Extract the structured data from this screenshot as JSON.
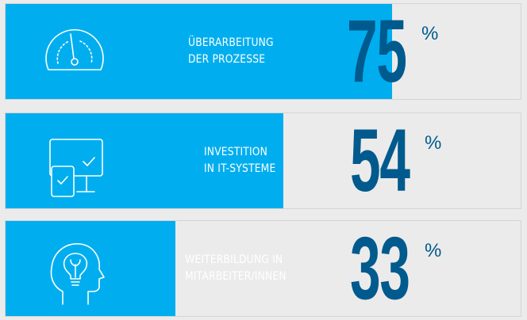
{
  "chart_data": {
    "type": "bar",
    "orientation": "horizontal",
    "categories": [
      "ÜBERARBEITUNG DER PROZESSE",
      "INVESTITION IN IT-SYSTEME",
      "WEITERBILDUNG IN MITARBEITER/INNEN"
    ],
    "values": [
      75,
      54,
      33
    ],
    "unit": "%",
    "xlim": [
      0,
      100
    ]
  },
  "rows": [
    {
      "label_lines": [
        "ÜBERARBEITUNG",
        "DER PROZESSE"
      ],
      "value": "75",
      "unit": "%",
      "percent": 75,
      "icon": "speedometer-icon"
    },
    {
      "label_lines": [
        "INVESTITION",
        "IN IT-SYSTEME"
      ],
      "value": "54",
      "unit": "%",
      "percent": 54,
      "icon": "monitor-tablet-icon"
    },
    {
      "label_lines": [
        "WEITERBILDUNG IN",
        "MITARBEITER/INNEN"
      ],
      "value": "33",
      "unit": "%",
      "percent": 33,
      "icon": "head-lightbulb-icon"
    }
  ],
  "colors": {
    "bar": "#00aeef",
    "background": "#ecebeb",
    "value": "#005a8d",
    "label": "#ffffff"
  }
}
